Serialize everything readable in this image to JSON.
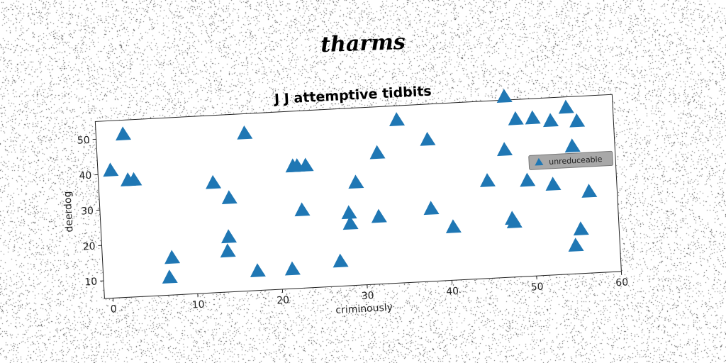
{
  "suptitle": "tharms",
  "chart_data": {
    "type": "scatter",
    "title": "J J attemptive tidbits",
    "xlabel": "criminously",
    "ylabel": "deerdog",
    "xlim": [
      -1,
      60
    ],
    "ylim": [
      5,
      55
    ],
    "xticks": [
      0,
      10,
      20,
      30,
      40,
      50,
      60
    ],
    "yticks": [
      10,
      20,
      30,
      40,
      50
    ],
    "grid": false,
    "legend_position": "right",
    "marker": "triangle",
    "series": [
      {
        "name": "unreduceable",
        "color": "#1f77b4",
        "points": [
          [
            0.5,
            41
          ],
          [
            2.2,
            51
          ],
          [
            2.5,
            38
          ],
          [
            3.2,
            38
          ],
          [
            6.8,
            10
          ],
          [
            7.2,
            15.5
          ],
          [
            12.5,
            36
          ],
          [
            14,
            20.5
          ],
          [
            13.8,
            16.5
          ],
          [
            14.3,
            31.5
          ],
          [
            16.5,
            49.5
          ],
          [
            17.2,
            10.5
          ],
          [
            21.3,
            10.5
          ],
          [
            22,
            39.5
          ],
          [
            22.5,
            39.5
          ],
          [
            23.5,
            39.5
          ],
          [
            22.8,
            27
          ],
          [
            27,
            12
          ],
          [
            28.3,
            25.5
          ],
          [
            28.4,
            22.5
          ],
          [
            29.3,
            34
          ],
          [
            32,
            42
          ],
          [
            31.8,
            24
          ],
          [
            34.5,
            51
          ],
          [
            38,
            45
          ],
          [
            38,
            25.5
          ],
          [
            40.5,
            20
          ],
          [
            44.8,
            32.5
          ],
          [
            47,
            41
          ],
          [
            47.3,
            56
          ],
          [
            47.5,
            21.5
          ],
          [
            47.7,
            20.5
          ],
          [
            48.5,
            49.5
          ],
          [
            49.5,
            32
          ],
          [
            50.5,
            49.5
          ],
          [
            52.6,
            48.5
          ],
          [
            52.5,
            30.5
          ],
          [
            54.5,
            52
          ],
          [
            54.8,
            13
          ],
          [
            55,
            41
          ],
          [
            55.5,
            17.5
          ],
          [
            55.7,
            48
          ],
          [
            56.7,
            28
          ]
        ]
      }
    ]
  }
}
